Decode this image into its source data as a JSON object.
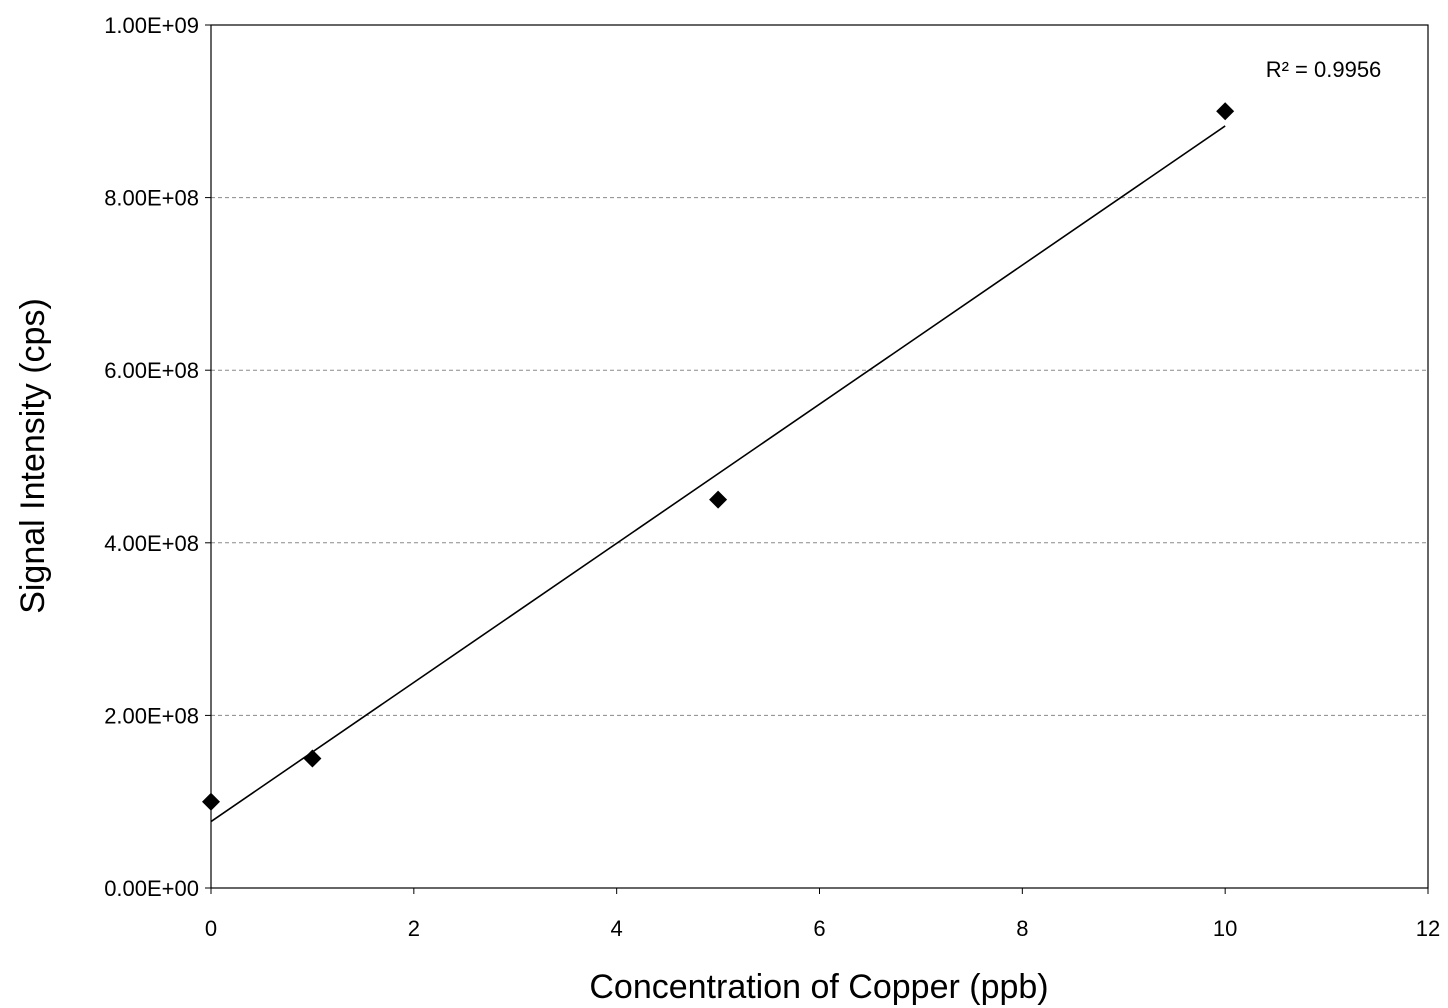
{
  "chart_data": {
    "type": "scatter",
    "xlabel": "Concentration of Copper (ppb)",
    "ylabel": "Signal Intensity (cps)",
    "xlim": [
      0,
      12
    ],
    "ylim": [
      0,
      1000000000
    ],
    "x_ticks": [
      0,
      2,
      4,
      6,
      8,
      10,
      12
    ],
    "x_tick_labels": [
      "0",
      "2",
      "4",
      "6",
      "8",
      "10",
      "12"
    ],
    "y_ticks": [
      0,
      200000000,
      400000000,
      600000000,
      800000000,
      1000000000
    ],
    "y_tick_labels": [
      "0.00E+00",
      "2.00E+08",
      "4.00E+08",
      "6.00E+08",
      "8.00E+08",
      "1.00E+09"
    ],
    "grid": {
      "horizontal": true,
      "vertical": false,
      "style": "dashed"
    },
    "series": [
      {
        "x": [
          0,
          1,
          5,
          10
        ],
        "y": [
          100000000,
          150000000,
          450000000,
          900000000
        ],
        "marker": "diamond",
        "color": "#000000"
      }
    ],
    "trendline": {
      "type": "linear",
      "x_range": [
        0,
        10
      ],
      "y_start": 77000000,
      "y_end": 883000000,
      "color": "#000000"
    },
    "annotations": [
      {
        "text": "R² = 0.9956",
        "x": 10.4,
        "y": 940000000
      }
    ]
  }
}
